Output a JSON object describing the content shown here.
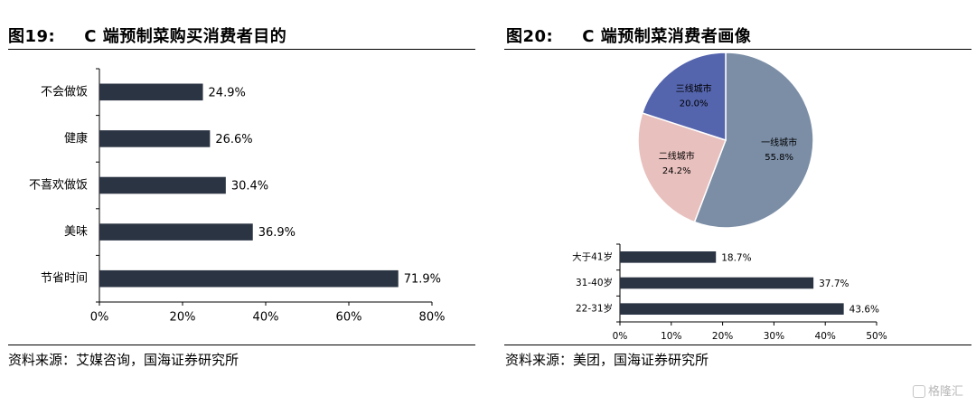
{
  "left_figure": {
    "number": "图19:",
    "title": "C 端预制菜购买消费者目的",
    "source": "资料来源：艾媒咨询，国海证券研究所"
  },
  "right_figure": {
    "number": "图20:",
    "title": "C 端预制菜消费者画像",
    "source": "资料来源：美团，国海证券研究所"
  },
  "watermark": "格隆汇",
  "colors": {
    "bar": "#2b3443",
    "pie_tier1": "#7b8ea6",
    "pie_tier2": "#e8c0be",
    "pie_tier3": "#5464ad"
  },
  "chart_data": [
    {
      "type": "bar",
      "orientation": "horizontal",
      "categories": [
        "不会做饭",
        "健康",
        "不喜欢做饭",
        "美味",
        "节省时间"
      ],
      "values": [
        24.9,
        26.6,
        30.4,
        36.9,
        71.9
      ],
      "value_labels": [
        "24.9%",
        "26.6%",
        "30.4%",
        "36.9%",
        "71.9%"
      ],
      "xlim": [
        0,
        80
      ],
      "xticks": [
        0,
        20,
        40,
        60,
        80
      ],
      "xtick_labels": [
        "0%",
        "20%",
        "40%",
        "60%",
        "80%"
      ],
      "grid": false
    },
    {
      "type": "pie",
      "slices": [
        {
          "name": "一线城市",
          "value": 55.8,
          "label": "55.8%",
          "color": "#7b8ea6"
        },
        {
          "name": "二线城市",
          "value": 24.2,
          "label": "24.2%",
          "color": "#e8c0be"
        },
        {
          "name": "三线城市",
          "value": 20.0,
          "label": "20.0%",
          "color": "#5464ad"
        }
      ]
    },
    {
      "type": "bar",
      "orientation": "horizontal",
      "categories": [
        "大于41岁",
        "31-40岁",
        "22-31岁"
      ],
      "values": [
        18.7,
        37.7,
        43.6
      ],
      "value_labels": [
        "18.7%",
        "37.7%",
        "43.6%"
      ],
      "xlim": [
        0,
        50
      ],
      "xticks": [
        0,
        10,
        20,
        30,
        40,
        50
      ],
      "xtick_labels": [
        "0%",
        "10%",
        "20%",
        "30%",
        "40%",
        "50%"
      ],
      "grid": false
    }
  ]
}
